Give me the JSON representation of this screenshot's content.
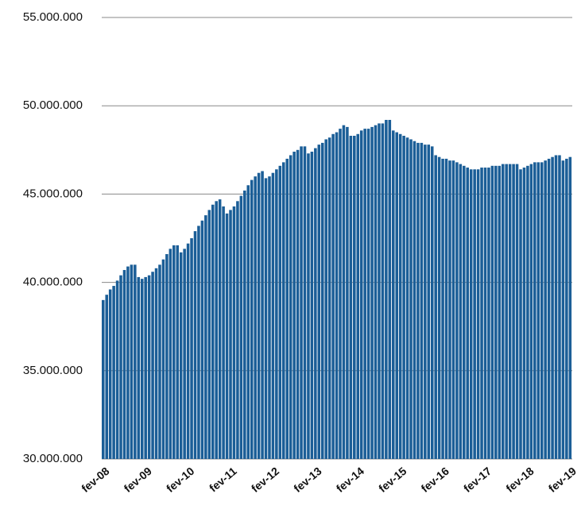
{
  "chart_data": {
    "type": "bar",
    "color": "#1b5e97",
    "grid": true,
    "ylim": [
      30000000,
      55000000
    ],
    "yticks": [
      {
        "value": 30000000,
        "label": "30.000.000"
      },
      {
        "value": 35000000,
        "label": "35.000.000"
      },
      {
        "value": 40000000,
        "label": "40.000.000"
      },
      {
        "value": 45000000,
        "label": "45.000.000"
      },
      {
        "value": 50000000,
        "label": "50.000.000"
      },
      {
        "value": 55000000,
        "label": "55.000.000"
      }
    ],
    "categories": [
      "fev-08",
      null,
      null,
      null,
      null,
      null,
      null,
      null,
      null,
      null,
      null,
      null,
      "fev-09",
      null,
      null,
      null,
      null,
      null,
      null,
      null,
      null,
      null,
      null,
      null,
      "fev-10",
      null,
      null,
      null,
      null,
      null,
      null,
      null,
      null,
      null,
      null,
      null,
      "fev-11",
      null,
      null,
      null,
      null,
      null,
      null,
      null,
      null,
      null,
      null,
      null,
      "fev-12",
      null,
      null,
      null,
      null,
      null,
      null,
      null,
      null,
      null,
      null,
      null,
      "fev-13",
      null,
      null,
      null,
      null,
      null,
      null,
      null,
      null,
      null,
      null,
      null,
      "fev-14",
      null,
      null,
      null,
      null,
      null,
      null,
      null,
      null,
      null,
      null,
      null,
      "fev-15",
      null,
      null,
      null,
      null,
      null,
      null,
      null,
      null,
      null,
      null,
      null,
      "fev-16",
      null,
      null,
      null,
      null,
      null,
      null,
      null,
      null,
      null,
      null,
      null,
      "fev-17",
      null,
      null,
      null,
      null,
      null,
      null,
      null,
      null,
      null,
      null,
      null,
      "fev-18",
      null,
      null,
      null,
      null,
      null,
      null,
      null,
      null,
      null,
      null,
      null,
      "fev-19"
    ],
    "values": [
      39000000,
      39300000,
      39600000,
      39800000,
      40100000,
      40400000,
      40700000,
      40900000,
      41000000,
      41000000,
      40300000,
      40200000,
      40300000,
      40400000,
      40600000,
      40800000,
      41000000,
      41300000,
      41600000,
      41900000,
      42100000,
      42100000,
      41700000,
      41900000,
      42200000,
      42500000,
      42900000,
      43200000,
      43500000,
      43800000,
      44100000,
      44400000,
      44600000,
      44700000,
      44300000,
      43900000,
      44100000,
      44300000,
      44600000,
      44900000,
      45200000,
      45500000,
      45800000,
      46000000,
      46200000,
      46300000,
      45900000,
      46000000,
      46200000,
      46400000,
      46600000,
      46800000,
      47000000,
      47200000,
      47400000,
      47500000,
      47700000,
      47700000,
      47300000,
      47400000,
      47600000,
      47800000,
      47900000,
      48100000,
      48200000,
      48400000,
      48500000,
      48700000,
      48900000,
      48800000,
      48300000,
      48300000,
      48400000,
      48600000,
      48700000,
      48700000,
      48800000,
      48900000,
      49000000,
      49000000,
      49200000,
      49200000,
      48600000,
      48500000,
      48400000,
      48300000,
      48200000,
      48100000,
      48000000,
      47900000,
      47900000,
      47800000,
      47800000,
      47700000,
      47200000,
      47100000,
      47000000,
      47000000,
      46900000,
      46900000,
      46800000,
      46700000,
      46600000,
      46500000,
      46400000,
      46400000,
      46400000,
      46500000,
      46500000,
      46500000,
      46600000,
      46600000,
      46600000,
      46700000,
      46700000,
      46700000,
      46700000,
      46700000,
      46400000,
      46500000,
      46600000,
      46700000,
      46800000,
      46800000,
      46800000,
      46900000,
      47000000,
      47100000,
      47200000,
      47200000,
      46900000,
      47000000,
      47100000
    ]
  }
}
